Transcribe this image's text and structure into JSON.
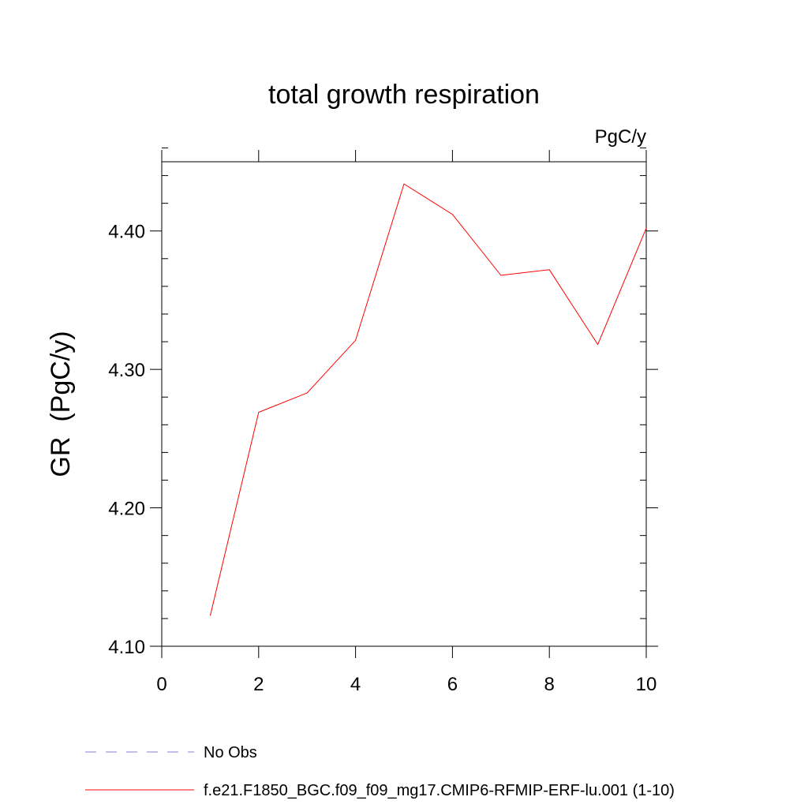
{
  "chart_data": {
    "type": "line",
    "title": "total growth respiration",
    "units_label": "PgC/y",
    "xlabel": "",
    "ylabel": "GR  (PgC/y)",
    "xlim": [
      0,
      10
    ],
    "ylim": [
      4.1,
      4.45
    ],
    "x_ticks": [
      0,
      2,
      4,
      6,
      8,
      10
    ],
    "x_tick_labels": [
      "0",
      "2",
      "4",
      "6",
      "8",
      "10"
    ],
    "y_ticks": [
      4.1,
      4.2,
      4.3,
      4.4
    ],
    "y_tick_labels": [
      "4.10",
      "4.20",
      "4.30",
      "4.40"
    ],
    "y_minor_step": 0.02,
    "x": [
      1,
      2,
      3,
      4,
      5,
      6,
      7,
      8,
      9,
      10
    ],
    "series": [
      {
        "name": "f.e21.F1850_BGC.f09_f09_mg17.CMIP6-RFMIP-ERF-lu.001 (1-10)",
        "color": "#ff0000",
        "values": [
          4.122,
          4.269,
          4.283,
          4.321,
          4.434,
          4.412,
          4.368,
          4.372,
          4.318,
          4.402
        ]
      }
    ],
    "legend": [
      {
        "label": "No Obs",
        "color": "#8a7fd0",
        "style": "dashed"
      },
      {
        "label": "f.e21.F1850_BGC.f09_f09_mg17.CMIP6-RFMIP-ERF-lu.001 (1-10)",
        "color": "#ff0000",
        "style": "solid"
      }
    ],
    "legend_position": "bottom-left"
  }
}
